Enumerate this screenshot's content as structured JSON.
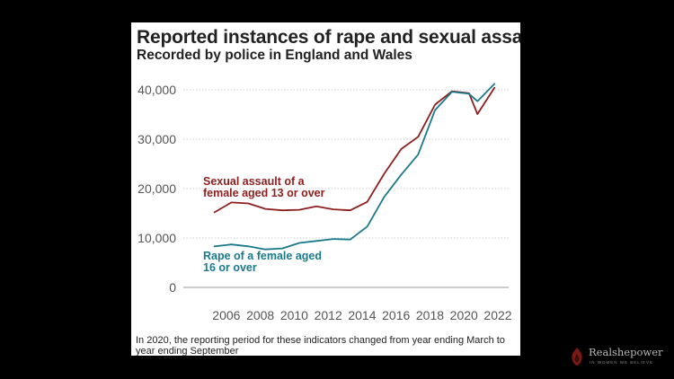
{
  "chart_data": {
    "type": "line",
    "title": "Reported instances of rape and sexual assault",
    "subtitle": "Recorded by police in England and Wales",
    "footnote": "In 2020, the reporting period for these indicators changed from year ending March to year ending September",
    "xlim": [
      2005,
      2022
    ],
    "ylim": [
      0,
      40000
    ],
    "x_ticks": [
      "2006",
      "2008",
      "2010",
      "2012",
      "2014",
      "2016",
      "2018",
      "2020",
      "2022"
    ],
    "y_ticks": [
      "0",
      "10,000",
      "20,000",
      "30,000",
      "40,000"
    ],
    "grid": "horizontal dotted",
    "series": [
      {
        "name": "Sexual assault of a female aged 13 or over",
        "label_lines": [
          "Sexual assault of a",
          "female aged 13 or over"
        ],
        "color": "#8f1e1e",
        "x": [
          2005.3,
          2006.3,
          2007.3,
          2008.3,
          2009.3,
          2010.3,
          2011.3,
          2012.3,
          2013.3,
          2014.3,
          2015.3,
          2016.3,
          2017.3,
          2018.3,
          2019.3,
          2020.3,
          2020.8,
          2021.8
        ],
        "y": [
          15200,
          17200,
          17000,
          15900,
          15600,
          15700,
          16400,
          15800,
          15600,
          17300,
          23000,
          28000,
          30500,
          37000,
          39700,
          39300,
          35100,
          40400
        ]
      },
      {
        "name": "Rape of a female aged 16 or over",
        "label_lines": [
          "Rape of a female aged",
          "16 or over"
        ],
        "color": "#1a7a8c",
        "x": [
          2005.3,
          2006.3,
          2007.3,
          2008.3,
          2009.3,
          2010.3,
          2011.3,
          2012.3,
          2013.3,
          2014.3,
          2015.3,
          2016.3,
          2017.3,
          2018.3,
          2019.3,
          2020.3,
          2020.8,
          2021.8
        ],
        "y": [
          8300,
          8700,
          8300,
          7700,
          7900,
          9000,
          9400,
          9800,
          9700,
          12300,
          18300,
          22800,
          26900,
          35900,
          39600,
          39200,
          37700,
          41200
        ]
      }
    ]
  },
  "watermark": {
    "name": "Realshepower",
    "tagline": "IN WOMEN WE BELIEVE",
    "logo_color": "#7a1a12"
  }
}
